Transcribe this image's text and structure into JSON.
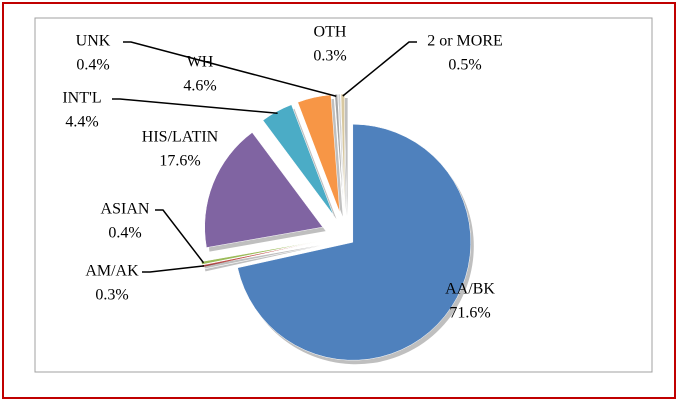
{
  "chart_data": {
    "type": "pie",
    "categories": [
      "AA/BK",
      "AM/AK",
      "ASIAN",
      "HIS/LATIN",
      "INT'L",
      "WH",
      "UNK",
      "OTH",
      "2 or MORE"
    ],
    "values": [
      71.6,
      0.3,
      0.4,
      17.6,
      4.4,
      4.6,
      0.4,
      0.3,
      0.5
    ],
    "value_labels": [
      "71.6%",
      "0.3%",
      "0.4%",
      "17.6%",
      "4.4%",
      "4.6%",
      "0.4%",
      "0.3%",
      "0.5%"
    ],
    "colors": [
      "#4f81bd",
      "#c0504d",
      "#9bbb59",
      "#8064a2",
      "#4bacc6",
      "#f79646",
      "#a5a5a5",
      "#d0d0d0",
      "#d9c9a0"
    ]
  }
}
